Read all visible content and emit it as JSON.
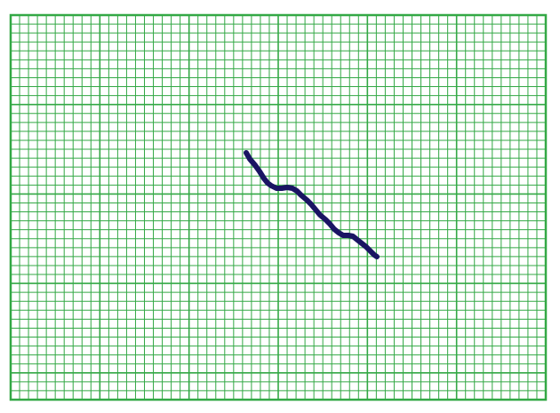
{
  "drawing": {
    "grid_color": "#33a845",
    "grid_bg": "#ffffff",
    "stroke_color": "#1a1463"
  }
}
